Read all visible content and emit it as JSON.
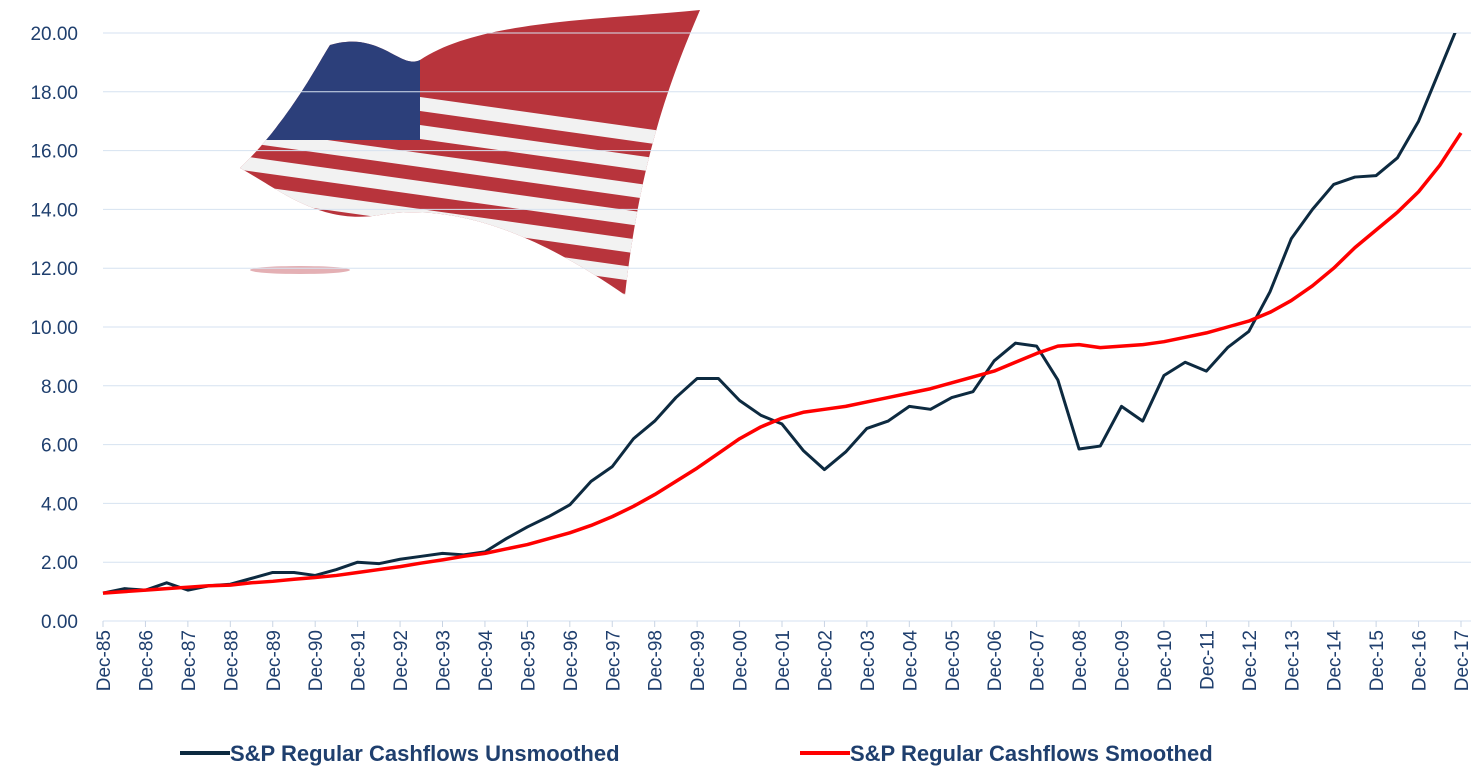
{
  "chart_data": {
    "type": "line",
    "categories": [
      "Dec-85",
      null,
      "Dec-86",
      null,
      "Dec-87",
      null,
      "Dec-88",
      null,
      "Dec-89",
      null,
      "Dec-90",
      null,
      "Dec-91",
      null,
      "Dec-92",
      null,
      "Dec-93",
      null,
      "Dec-94",
      null,
      "Dec-95",
      null,
      "Dec-96",
      null,
      "Dec-97",
      null,
      "Dec-98",
      null,
      "Dec-99",
      null,
      "Dec-00",
      null,
      "Dec-01",
      null,
      "Dec-02",
      null,
      "Dec-03",
      null,
      "Dec-04",
      null,
      "Dec-05",
      null,
      "Dec-06",
      null,
      "Dec-07",
      null,
      "Dec-08",
      null,
      "Dec-09",
      null,
      "Dec-10",
      null,
      "Dec-11",
      null,
      "Dec-12",
      null,
      "Dec-13",
      null,
      "Dec-14",
      null,
      "Dec-15",
      null,
      "Dec-16",
      null,
      "Dec-17"
    ],
    "series": [
      {
        "name": "S&P Regular Cashflows Unsmoothed",
        "color": "#0d2a40",
        "values": [
          0.95,
          1.1,
          1.05,
          1.3,
          1.05,
          1.2,
          1.25,
          1.45,
          1.65,
          1.65,
          1.55,
          1.75,
          2.0,
          1.95,
          2.1,
          2.2,
          2.3,
          2.25,
          2.35,
          2.8,
          3.2,
          3.55,
          3.95,
          4.75,
          5.25,
          6.2,
          6.8,
          7.6,
          8.25,
          8.25,
          7.5,
          7.0,
          6.7,
          5.8,
          5.15,
          5.75,
          6.55,
          6.8,
          7.3,
          7.2,
          7.6,
          7.8,
          8.85,
          9.45,
          9.35,
          8.2,
          5.85,
          5.95,
          7.3,
          6.8,
          8.35,
          8.8,
          8.5,
          9.3,
          9.85,
          11.2,
          13.0,
          14.0,
          14.85,
          15.1,
          15.15,
          15.75,
          17.0,
          18.75,
          20.5
        ]
      },
      {
        "name": "S&P Regular Cashflows Smoothed",
        "color": "#ff0000",
        "values": [
          0.95,
          1.0,
          1.05,
          1.1,
          1.15,
          1.2,
          1.22,
          1.3,
          1.35,
          1.42,
          1.48,
          1.55,
          1.65,
          1.75,
          1.85,
          1.97,
          2.08,
          2.2,
          2.3,
          2.45,
          2.6,
          2.8,
          3.0,
          3.25,
          3.55,
          3.9,
          4.3,
          4.75,
          5.2,
          5.7,
          6.2,
          6.6,
          6.9,
          7.1,
          7.2,
          7.3,
          7.45,
          7.6,
          7.75,
          7.9,
          8.1,
          8.3,
          8.5,
          8.8,
          9.1,
          9.35,
          9.4,
          9.3,
          9.35,
          9.4,
          9.5,
          9.65,
          9.8,
          10.0,
          10.2,
          10.5,
          10.9,
          11.4,
          12.0,
          12.7,
          13.3,
          13.9,
          14.6,
          15.5,
          16.6
        ]
      }
    ],
    "ylim": [
      0,
      20
    ],
    "yticks": [
      {
        "value": 0,
        "label": "0.00"
      },
      {
        "value": 2,
        "label": "2.00"
      },
      {
        "value": 4,
        "label": "4.00"
      },
      {
        "value": 6,
        "label": "6.00"
      },
      {
        "value": 8,
        "label": "8.00"
      },
      {
        "value": 10,
        "label": "10.00"
      },
      {
        "value": 12,
        "label": "12.00"
      },
      {
        "value": 14,
        "label": "14.00"
      },
      {
        "value": 16,
        "label": "16.00"
      },
      {
        "value": 18,
        "label": "18.00"
      },
      {
        "value": 20,
        "label": "20.00"
      }
    ],
    "grid": true,
    "legend": "bottom"
  }
}
